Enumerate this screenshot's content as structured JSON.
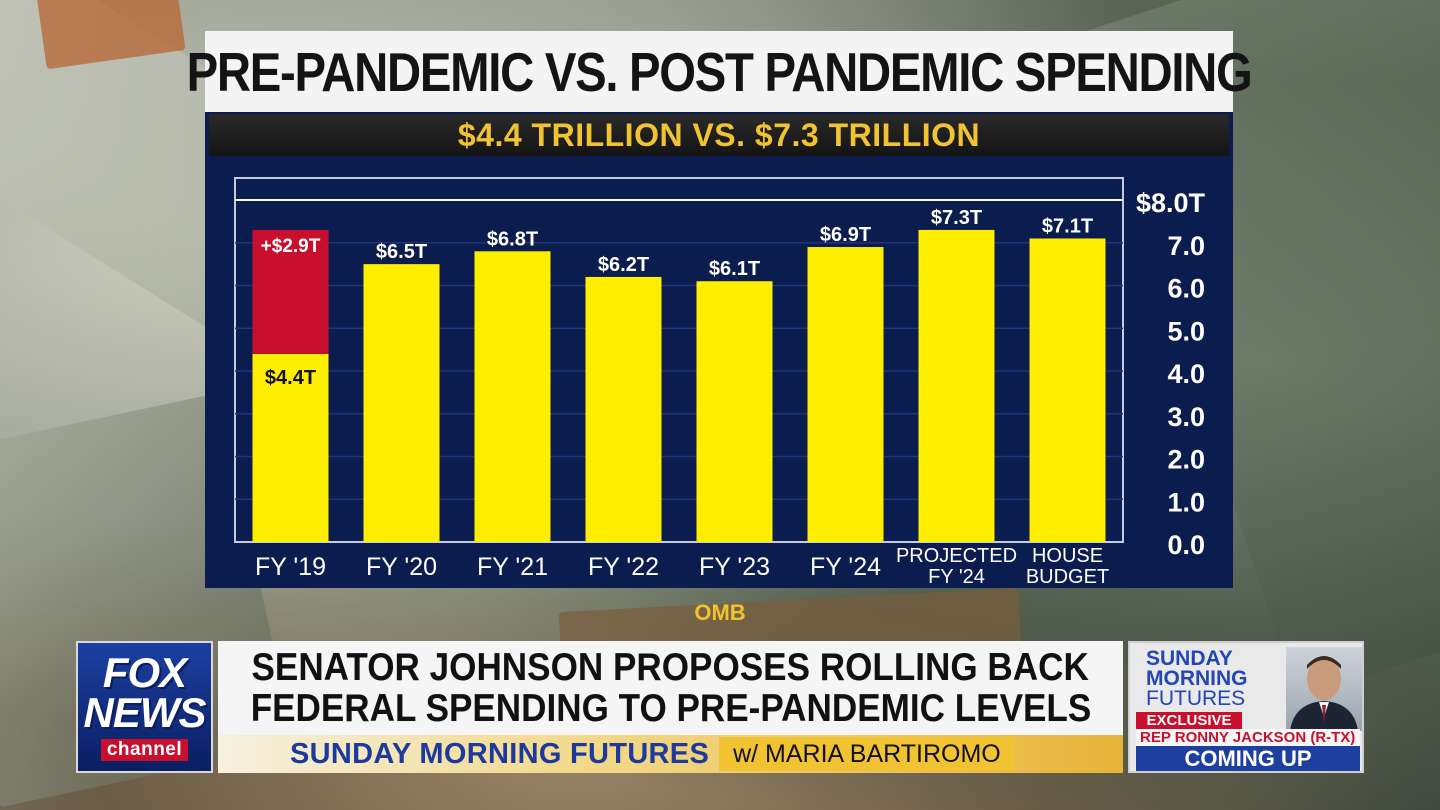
{
  "headline_graphic": {
    "title": "PRE-PANDEMIC VS. POST PANDEMIC SPENDING",
    "subtitle": "$4.4 TRILLION VS. $7.3 TRILLION",
    "source": "OMB"
  },
  "chart_data": {
    "type": "bar",
    "title": "PRE-PANDEMIC VS. POST PANDEMIC SPENDING",
    "subtitle": "$4.4 TRILLION VS. $7.3 TRILLION",
    "categories": [
      "FY '19",
      "FY '20",
      "FY '21",
      "FY '22",
      "FY '23",
      "FY '24",
      "PROJECTED FY '24",
      "HOUSE BUDGET"
    ],
    "category_lines": [
      [
        "FY '19"
      ],
      [
        "FY '20"
      ],
      [
        "FY '21"
      ],
      [
        "FY '22"
      ],
      [
        "FY '23"
      ],
      [
        "FY '24"
      ],
      [
        "PROJECTED",
        "FY '24"
      ],
      [
        "HOUSE",
        "BUDGET"
      ]
    ],
    "values": [
      4.4,
      6.5,
      6.8,
      6.2,
      6.1,
      6.9,
      7.3,
      7.1
    ],
    "value_labels": [
      "$4.4T",
      "$6.5T",
      "$6.8T",
      "$6.2T",
      "$6.1T",
      "$6.9T",
      "$7.3T",
      "$7.1T"
    ],
    "stacked_increase": {
      "category": "FY '19",
      "value": 2.9,
      "label": "+$2.9T",
      "color": "#c8102e"
    },
    "bar_color": "#ffee00",
    "background_color": "#0b1c4e",
    "ylim": [
      0,
      8
    ],
    "y_ticks": [
      0,
      1,
      2,
      3,
      4,
      5,
      6,
      7,
      8
    ],
    "y_tick_labels": [
      "0.0",
      "1.0",
      "2.0",
      "3.0",
      "4.0",
      "5.0",
      "6.0",
      "7.0",
      "$8.0T"
    ],
    "y_axis_position": "right",
    "grid": true,
    "source": "OMB"
  },
  "lower_third": {
    "logo": {
      "line1": "FOX",
      "line2": "NEWS",
      "line3": "channel"
    },
    "headline_line1": "SENATOR JOHNSON PROPOSES ROLLING BACK",
    "headline_line2": "FEDERAL SPENDING TO PRE-PANDEMIC LEVELS",
    "show_name": "SUNDAY MORNING FUTURES",
    "host": "w/ MARIA BARTIROMO",
    "promo": {
      "show_line1": "SUNDAY",
      "show_line2": "MORNING",
      "show_line3": "FUTURES",
      "exclusive": "EXCLUSIVE",
      "guest": "REP RONNY JACKSON (R-TX)",
      "status": "COMING UP"
    }
  }
}
